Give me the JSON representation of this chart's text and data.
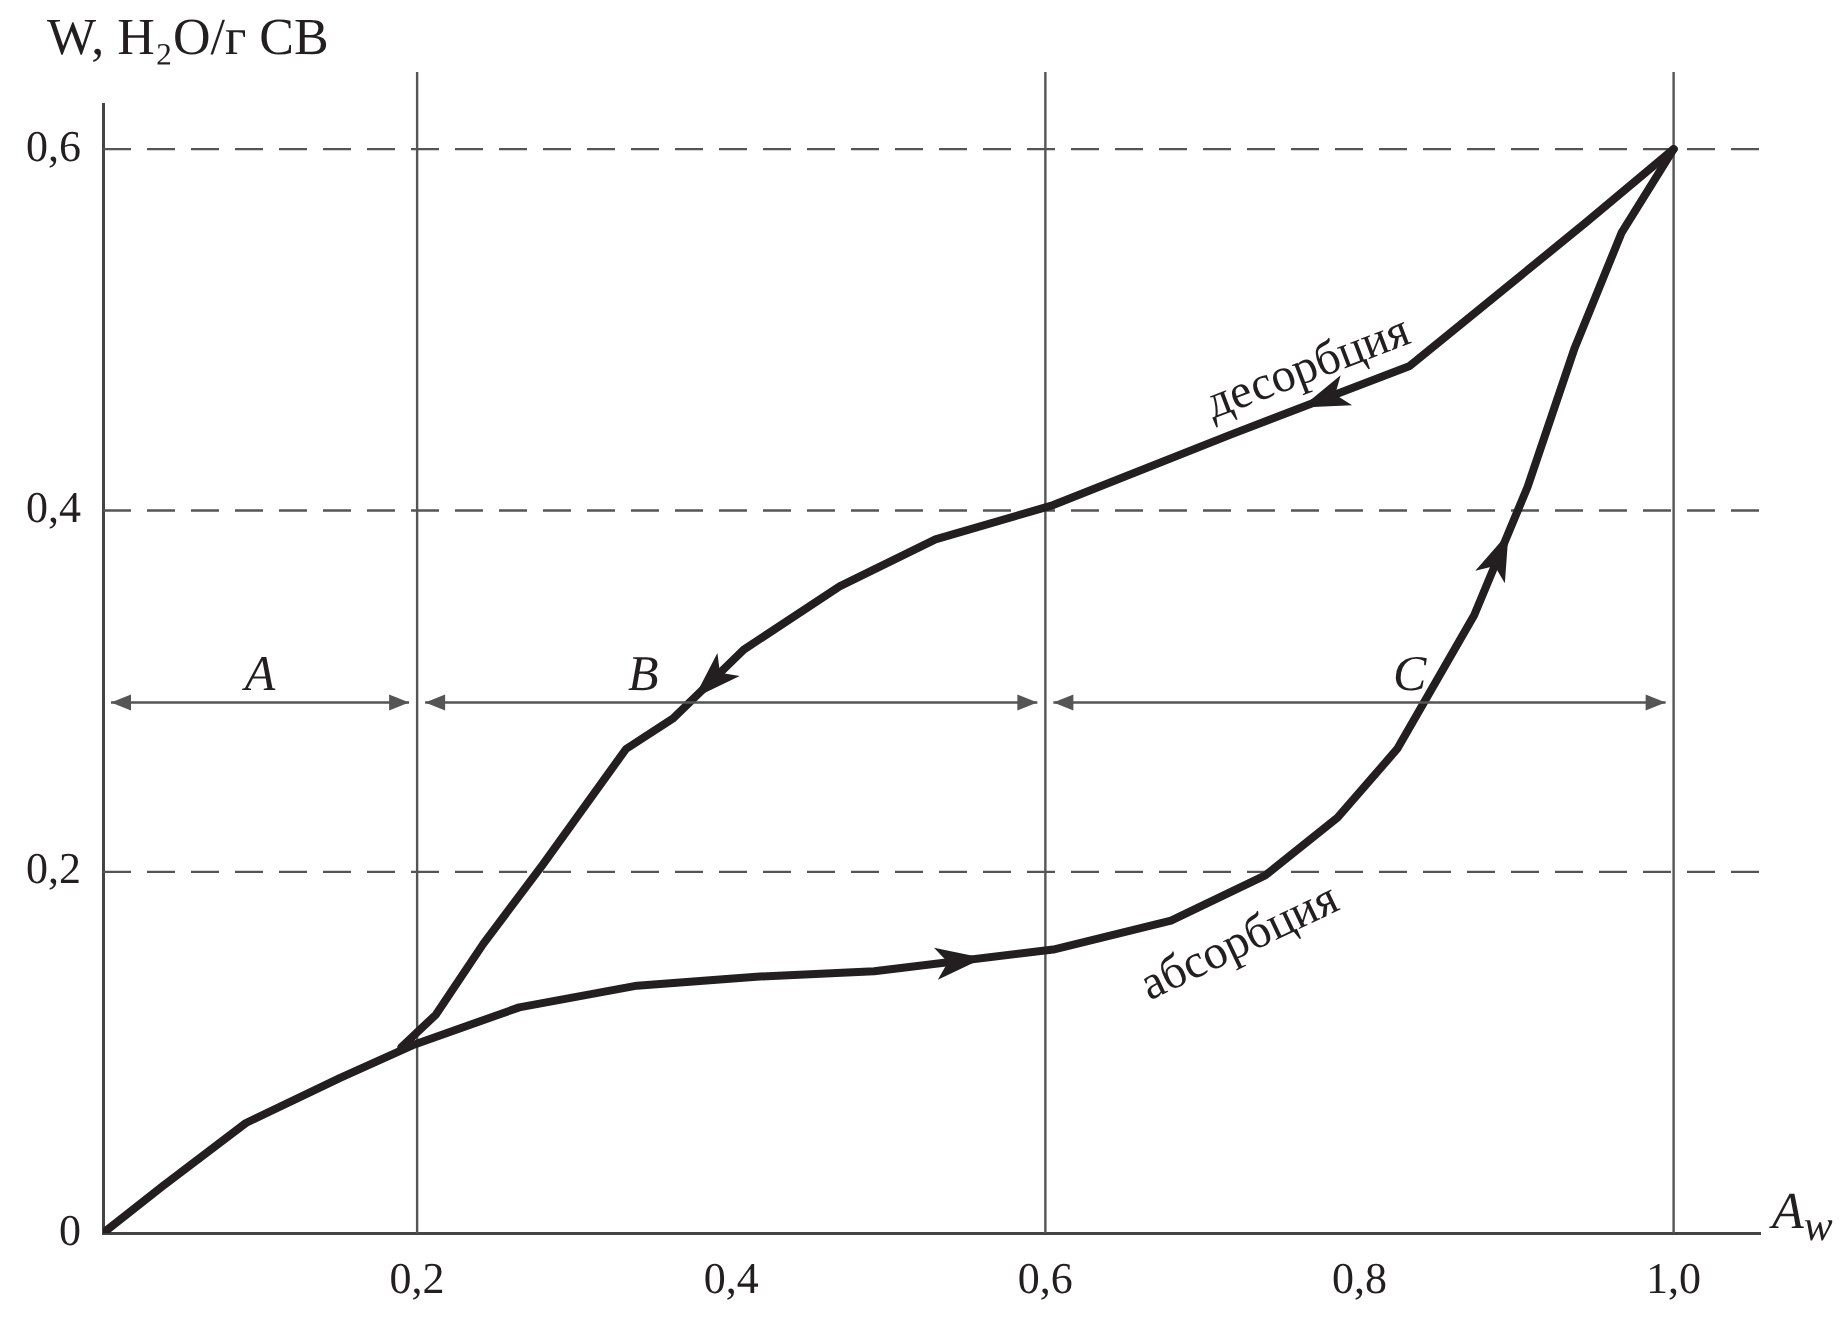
{
  "chart_data": {
    "type": "line",
    "xlabel": "A$_{w}$",
    "ylabel": "W, H₂O/г СВ",
    "xlim": [
      0,
      1.055
    ],
    "ylim": [
      0,
      0.625
    ],
    "xticks": [
      {
        "value": 0,
        "label": null
      },
      {
        "value": 0.2,
        "label": "0,2"
      },
      {
        "value": 0.4,
        "label": "0,4"
      },
      {
        "value": 0.6,
        "label": "0,6"
      },
      {
        "value": 0.8,
        "label": "0,8"
      },
      {
        "value": 1.0,
        "label": "1,0"
      }
    ],
    "yticks": [
      {
        "value": 0,
        "label": "0"
      },
      {
        "value": 0.2,
        "label": "0,2"
      },
      {
        "value": 0.4,
        "label": "0,4"
      },
      {
        "value": 0.6,
        "label": "0,6"
      }
    ],
    "grid": "y",
    "marker": "none",
    "ref_lines": [
      {
        "axis": "x",
        "value": 0.2,
        "label": null
      },
      {
        "axis": "x",
        "value": 0.6,
        "label": null
      },
      {
        "axis": "x",
        "value": 1.0,
        "label": null
      }
    ],
    "annotations": [
      "A",
      "B",
      "C"
    ],
    "series": [
      {
        "name": "абсорбция",
        "color": "#231f20",
        "x": [
          0,
          0.038,
          0.091,
          0.151,
          0.197,
          0.265,
          0.34,
          0.416,
          0.491,
          0.605,
          0.68,
          0.74,
          0.786,
          0.824,
          0.873,
          0.907,
          0.937,
          0.967,
          1.0
        ],
        "values": [
          0,
          0.026,
          0.061,
          0.086,
          0.104,
          0.125,
          0.137,
          0.142,
          0.145,
          0.157,
          0.173,
          0.198,
          0.23,
          0.268,
          0.342,
          0.413,
          0.49,
          0.554,
          0.6
        ]
      },
      {
        "name": "десорбция",
        "color": "#231f20",
        "x": [
          1.0,
          0.945,
          0.832,
          0.718,
          0.605,
          0.53,
          0.469,
          0.408,
          0.363,
          0.333,
          0.28,
          0.242,
          0.212,
          0.19
        ],
        "values": [
          0.6,
          0.56,
          0.48,
          0.442,
          0.403,
          0.384,
          0.358,
          0.323,
          0.285,
          0.268,
          0.204,
          0.16,
          0.121,
          0.103
        ]
      }
    ]
  }
}
